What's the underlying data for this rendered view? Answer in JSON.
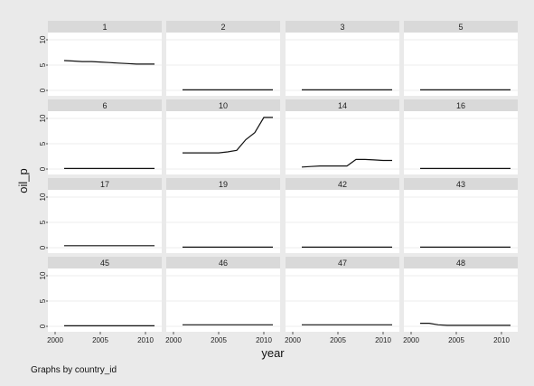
{
  "chart_data": {
    "type": "line",
    "layout": "small-multiples 4x4",
    "xlabel": "year",
    "ylabel": "oil_p",
    "note": "Graphs by country_id",
    "xlim": [
      2000,
      2011
    ],
    "ylim": [
      0,
      10
    ],
    "xticks": [
      2000,
      2005,
      2010
    ],
    "yticks": [
      0,
      5,
      10
    ],
    "years": [
      2001,
      2002,
      2003,
      2004,
      2005,
      2006,
      2007,
      2008,
      2009,
      2010,
      2011
    ],
    "panels": [
      {
        "label": "1",
        "values": [
          5.9,
          5.8,
          5.7,
          5.7,
          5.6,
          5.5,
          5.4,
          5.3,
          5.2,
          5.2,
          5.2
        ]
      },
      {
        "label": "2",
        "values": [
          0.1,
          0.1,
          0.1,
          0.1,
          0.1,
          0.1,
          0.1,
          0.1,
          0.1,
          0.1,
          0.1
        ]
      },
      {
        "label": "3",
        "values": [
          0.1,
          0.1,
          0.1,
          0.1,
          0.1,
          0.1,
          0.1,
          0.1,
          0.1,
          0.1,
          0.1
        ]
      },
      {
        "label": "5",
        "values": [
          0.1,
          0.1,
          0.1,
          0.1,
          0.1,
          0.1,
          0.1,
          0.1,
          0.1,
          0.1,
          0.1
        ]
      },
      {
        "label": "6",
        "values": [
          0.1,
          0.1,
          0.1,
          0.1,
          0.1,
          0.1,
          0.1,
          0.1,
          0.1,
          0.1,
          0.1
        ]
      },
      {
        "label": "10",
        "values": [
          3.2,
          3.2,
          3.2,
          3.2,
          3.2,
          3.4,
          3.7,
          5.8,
          7.2,
          10.2,
          10.2
        ]
      },
      {
        "label": "14",
        "values": [
          0.4,
          0.5,
          0.6,
          0.6,
          0.6,
          0.6,
          1.9,
          1.9,
          1.8,
          1.7,
          1.7
        ]
      },
      {
        "label": "16",
        "values": [
          0.1,
          0.1,
          0.1,
          0.1,
          0.1,
          0.1,
          0.1,
          0.1,
          0.1,
          0.1,
          0.1
        ]
      },
      {
        "label": "17",
        "values": [
          0.4,
          0.4,
          0.4,
          0.4,
          0.4,
          0.4,
          0.4,
          0.4,
          0.4,
          0.4,
          0.4
        ]
      },
      {
        "label": "19",
        "values": [
          0.1,
          0.1,
          0.1,
          0.1,
          0.1,
          0.1,
          0.1,
          0.1,
          0.1,
          0.1,
          0.1
        ]
      },
      {
        "label": "42",
        "values": [
          0.1,
          0.1,
          0.1,
          0.1,
          0.1,
          0.1,
          0.1,
          0.1,
          0.1,
          0.1,
          0.1
        ]
      },
      {
        "label": "43",
        "values": [
          0.1,
          0.1,
          0.1,
          0.1,
          0.1,
          0.1,
          0.1,
          0.1,
          0.1,
          0.1,
          0.1
        ]
      },
      {
        "label": "45",
        "values": [
          0.1,
          0.1,
          0.1,
          0.1,
          0.1,
          0.1,
          0.1,
          0.1,
          0.1,
          0.1,
          0.1
        ]
      },
      {
        "label": "46",
        "values": [
          0.3,
          0.3,
          0.3,
          0.3,
          0.3,
          0.3,
          0.3,
          0.3,
          0.3,
          0.3,
          0.3
        ]
      },
      {
        "label": "47",
        "values": [
          0.3,
          0.3,
          0.3,
          0.3,
          0.3,
          0.3,
          0.3,
          0.3,
          0.3,
          0.3,
          0.3
        ]
      },
      {
        "label": "48",
        "values": [
          0.6,
          0.6,
          0.3,
          0.2,
          0.2,
          0.2,
          0.2,
          0.2,
          0.2,
          0.2,
          0.2
        ]
      }
    ],
    "grid": true,
    "colors": {
      "background": "#eaeaea",
      "panel": "#ffffff",
      "strip": "#d9d9d9",
      "gridline": "#eeeeee",
      "line": "#111111"
    }
  }
}
